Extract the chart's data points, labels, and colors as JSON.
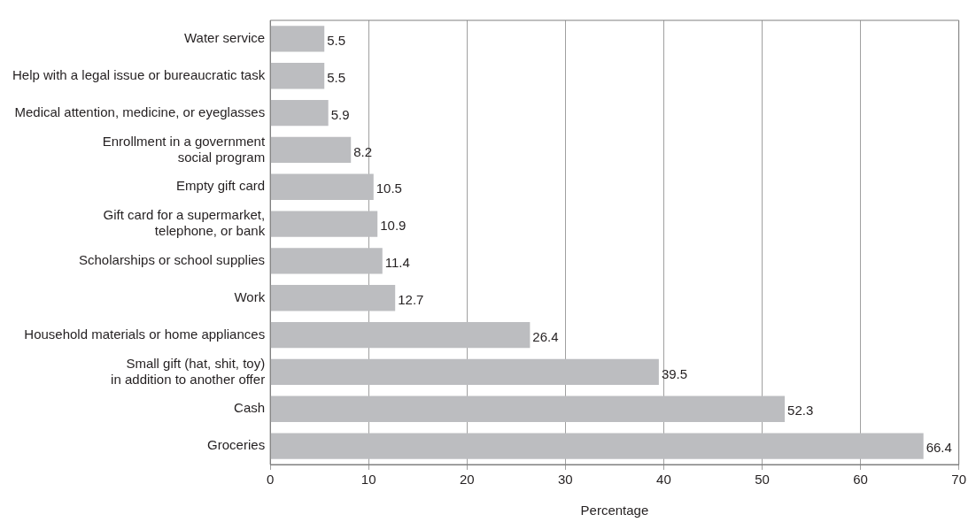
{
  "chart_data": {
    "type": "bar",
    "orientation": "horizontal",
    "xlabel": "Percentage",
    "categories": [
      "Water service",
      "Help with a legal issue or bureaucratic task",
      "Medical attention, medicine, or eyeglasses",
      "Enrollment in a government\nsocial program",
      "Empty gift card",
      "Gift card for a supermarket,\ntelephone, or bank",
      "Scholarships or school supplies",
      "Work",
      "Household materials or home appliances",
      "Small gift (hat, shit, toy)\nin addition to another offer",
      "Cash",
      "Groceries"
    ],
    "values": [
      5.5,
      5.5,
      5.9,
      8.2,
      10.5,
      10.9,
      11.4,
      12.7,
      26.4,
      39.5,
      52.3,
      66.4
    ],
    "color": "#bcbdc0",
    "xlim": [
      0,
      70
    ],
    "xticks": [
      0,
      10,
      20,
      30,
      40,
      50,
      60,
      70
    ],
    "grid": "x",
    "data_labels": true
  }
}
